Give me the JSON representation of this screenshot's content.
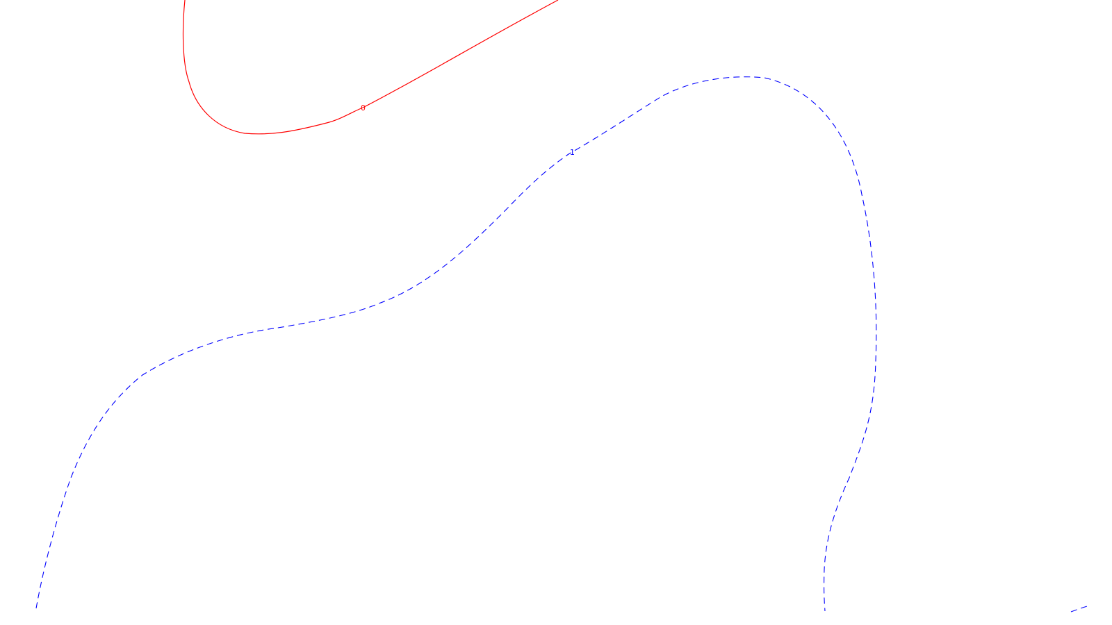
{
  "chart_data": {
    "type": "contour",
    "title": "",
    "xlabel": "",
    "ylabel": "",
    "grid": false,
    "legend": "none",
    "levels": [
      {
        "value": 0,
        "label": "0",
        "color": "#ff0000",
        "line_style": "solid"
      },
      {
        "value": 1,
        "label": "1",
        "color": "#0000ff",
        "line_style": "dashed"
      }
    ]
  }
}
